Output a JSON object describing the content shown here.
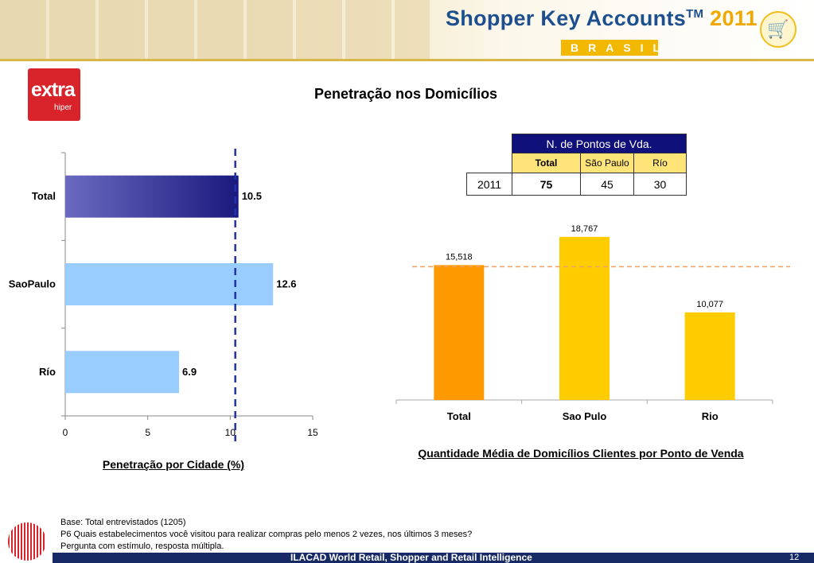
{
  "header": {
    "brand_title": "Shopper Key Accounts",
    "brand_tm": "TM",
    "brand_year": "2011",
    "brand_country": "BRASIL",
    "cart_icon": "shopping-cart-icon"
  },
  "logo": {
    "main": "extra",
    "sub": "hiper"
  },
  "title": "Penetração nos Domicílios",
  "table": {
    "header": "N. de Pontos de Vda.",
    "columns": [
      "Total",
      "São Paulo",
      "Río"
    ],
    "row_label": "2011",
    "values": [
      "75",
      "45",
      "30"
    ]
  },
  "chart_data": [
    {
      "type": "bar",
      "orientation": "horizontal",
      "categories": [
        "Total",
        "SaoPaulo",
        "Río"
      ],
      "values": [
        10.5,
        12.6,
        6.9
      ],
      "value_labels": [
        "10.5",
        "12.6",
        "6.9"
      ],
      "xlim": [
        0,
        15
      ],
      "ticks": [
        "0",
        "5",
        "10",
        "15"
      ],
      "reference_line": 10.5,
      "colors": [
        "#1a1a7e",
        "#99ccff",
        "#99ccff"
      ],
      "caption": "Penetração por Cidade (%)"
    },
    {
      "type": "bar",
      "orientation": "vertical",
      "categories": [
        "Total",
        "Sao Pulo",
        "Rio"
      ],
      "values": [
        15518,
        18767,
        10077
      ],
      "value_labels": [
        "15,518",
        "18,767",
        "10,077"
      ],
      "ylim": [
        0,
        21500
      ],
      "reference_line": 15518,
      "colors": [
        "#ff9900",
        "#ffcc00",
        "#ffcc00"
      ],
      "caption": "Quantidade Média de Domicílios Clientes por Ponto de Venda"
    }
  ],
  "footnote": {
    "line1": "Base: Total entrevistados (1205)",
    "line2": "P6 Quais estabelecimentos você visitou para realizar compras pelo menos 2 vezes, nos últimos 3 meses?",
    "line3": "Pergunta com estímulo, resposta múltipla."
  },
  "footer": {
    "text": "ILACAD World Retail, Shopper and Retail Intelligence",
    "page": "12"
  }
}
